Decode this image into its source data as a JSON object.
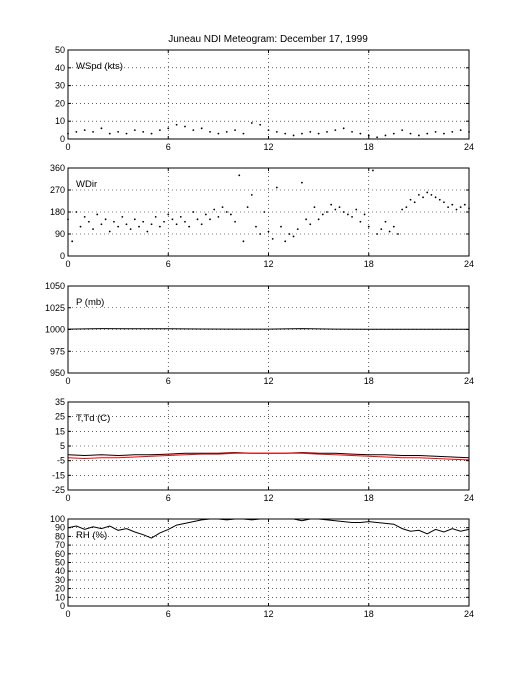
{
  "title": "Juneau NDI Meteogram:   December 17, 1999",
  "chart_data": {
    "type": "line",
    "x_range": [
      0,
      24
    ],
    "x_ticks": [
      0,
      6,
      12,
      18,
      24
    ],
    "grid": true,
    "panels": [
      {
        "id": "wspd",
        "label": "WSpd (kts)",
        "ylim": [
          0,
          50
        ],
        "y_ticks": [
          0,
          10,
          20,
          30,
          40,
          50
        ],
        "series": [
          {
            "style": "dots",
            "color": "#000000",
            "x": [
              0,
              0.5,
              1,
              1.5,
              2,
              2.5,
              3,
              3.5,
              4,
              4.5,
              5,
              5.5,
              6,
              6.5,
              7,
              7.5,
              8,
              8.5,
              9,
              9.5,
              10,
              10.5,
              11,
              11.5,
              12,
              12.5,
              13,
              13.5,
              14,
              14.5,
              15,
              15.5,
              16,
              16.5,
              17,
              17.5,
              18,
              18.5,
              19,
              19.5,
              20,
              20.5,
              21,
              21.5,
              22,
              22.5,
              23,
              23.5,
              24
            ],
            "y": [
              3,
              4,
              5,
              4,
              6,
              3,
              4,
              3,
              5,
              4,
              3,
              5,
              6,
              8,
              7,
              5,
              6,
              4,
              3,
              4,
              5,
              3,
              9,
              8,
              5,
              4,
              3,
              2,
              3,
              4,
              3,
              4,
              5,
              6,
              4,
              3,
              2,
              1,
              2,
              3,
              5,
              3,
              2,
              3,
              4,
              3,
              4,
              5,
              4
            ]
          }
        ]
      },
      {
        "id": "wdir",
        "label": "WDir",
        "ylim": [
          0,
          360
        ],
        "y_ticks": [
          0,
          90,
          180,
          270,
          360
        ],
        "series": [
          {
            "style": "dots",
            "color": "#000000",
            "x": [
              0,
              0.25,
              0.5,
              0.75,
              1,
              1.25,
              1.5,
              1.75,
              2,
              2.25,
              2.5,
              2.75,
              3,
              3.25,
              3.5,
              3.75,
              4,
              4.25,
              4.5,
              4.75,
              5,
              5.25,
              5.5,
              5.75,
              6,
              6.25,
              6.5,
              6.75,
              7,
              7.25,
              7.5,
              7.75,
              8,
              8.25,
              8.5,
              8.75,
              9,
              9.25,
              9.5,
              9.75,
              10,
              10.25,
              10.5,
              10.75,
              11,
              11.25,
              11.5,
              11.75,
              12,
              12.25,
              12.5,
              12.75,
              13,
              13.25,
              13.5,
              13.75,
              14,
              14.25,
              14.5,
              14.75,
              15,
              15.25,
              15.5,
              15.75,
              16,
              16.25,
              16.5,
              16.75,
              17,
              17.25,
              17.5,
              17.75,
              18,
              18.25,
              18.5,
              18.75,
              19,
              19.25,
              19.5,
              19.75,
              20,
              20.25,
              20.5,
              20.75,
              21,
              21.25,
              21.5,
              21.75,
              22,
              22.25,
              22.5,
              22.75,
              23,
              23.25,
              23.5,
              23.75,
              24
            ],
            "y": [
              150,
              60,
              180,
              120,
              160,
              140,
              110,
              170,
              130,
              150,
              100,
              140,
              120,
              160,
              130,
              110,
              150,
              120,
              140,
              100,
              130,
              160,
              120,
              140,
              170,
              150,
              130,
              160,
              140,
              120,
              180,
              150,
              130,
              170,
              150,
              190,
              160,
              200,
              180,
              170,
              140,
              330,
              60,
              200,
              250,
              120,
              90,
              180,
              100,
              70,
              280,
              120,
              60,
              90,
              80,
              110,
              300,
              150,
              130,
              200,
              150,
              170,
              180,
              210,
              190,
              200,
              180,
              170,
              160,
              190,
              140,
              170,
              120,
              350,
              90,
              110,
              140,
              100,
              120,
              90,
              190,
              200,
              230,
              220,
              250,
              240,
              260,
              250,
              240,
              230,
              220,
              200,
              210,
              190,
              200,
              210,
              195
            ]
          }
        ]
      },
      {
        "id": "pres",
        "label": "P (mb)",
        "ylim": [
          950,
          1050
        ],
        "y_ticks": [
          950,
          975,
          1000,
          1025,
          1050
        ],
        "series": [
          {
            "style": "line",
            "color": "#000000",
            "x": [
              0,
              2,
              4,
              6,
              8,
              10,
              12,
              14,
              16,
              18,
              20,
              22,
              24
            ],
            "y": [
              1000.5,
              1001,
              1000.8,
              1000.8,
              1000.6,
              1000.5,
              1000.5,
              1001,
              1000.5,
              1000.3,
              1000.2,
              1000.2,
              1000.3
            ]
          }
        ]
      },
      {
        "id": "temp",
        "label": "T,Td (C)",
        "ylim": [
          -25,
          35
        ],
        "y_ticks": [
          -25,
          -15,
          -5,
          5,
          15,
          25,
          35
        ],
        "series": [
          {
            "style": "line",
            "color": "#000000",
            "x": [
              0,
              1,
              2,
              3,
              4,
              5,
              6,
              7,
              8,
              9,
              10,
              11,
              12,
              13,
              14,
              15,
              16,
              17,
              18,
              19,
              20,
              21,
              22,
              23,
              24
            ],
            "y": [
              -1,
              -1.5,
              -1,
              -1.5,
              -1,
              -1,
              -0.5,
              0,
              0,
              0,
              0.5,
              0,
              0,
              0,
              0.5,
              0,
              0,
              -0.5,
              -1,
              -1,
              -1.5,
              -1.5,
              -2,
              -2.5,
              -3
            ]
          },
          {
            "style": "line",
            "color": "#ff0000",
            "x": [
              0,
              1,
              2,
              3,
              4,
              5,
              6,
              7,
              8,
              9,
              10,
              11,
              12,
              13,
              14,
              15,
              16,
              17,
              18,
              19,
              20,
              21,
              22,
              23,
              24
            ],
            "y": [
              -3,
              -3.5,
              -3,
              -3,
              -2.5,
              -2,
              -1.5,
              -1,
              -0.5,
              -0.5,
              0,
              0,
              0,
              0,
              0,
              -0.5,
              -1,
              -1.5,
              -2,
              -2.5,
              -3,
              -3,
              -3.5,
              -4,
              -4.5
            ]
          }
        ]
      },
      {
        "id": "rh",
        "label": "RH (%)",
        "ylim": [
          0,
          100
        ],
        "y_ticks": [
          0,
          10,
          20,
          30,
          40,
          50,
          60,
          70,
          80,
          90,
          100
        ],
        "series": [
          {
            "style": "line",
            "color": "#000000",
            "x": [
              0,
              0.5,
              1,
              1.5,
              2,
              2.5,
              3,
              3.5,
              4,
              4.5,
              5,
              5.5,
              6,
              6.5,
              7,
              7.5,
              8,
              8.5,
              9,
              9.5,
              10,
              10.5,
              11,
              11.5,
              12,
              12.5,
              13,
              13.5,
              14,
              14.5,
              15,
              15.5,
              16,
              16.5,
              17,
              17.5,
              18,
              18.5,
              19,
              19.5,
              20,
              20.5,
              21,
              21.5,
              22,
              22.5,
              23,
              23.5,
              24
            ],
            "y": [
              90,
              92,
              88,
              91,
              89,
              92,
              87,
              89,
              85,
              82,
              78,
              84,
              88,
              93,
              95,
              97,
              99,
              100,
              100,
              99,
              100,
              100,
              99,
              100,
              100,
              100,
              100,
              100,
              98,
              100,
              100,
              99,
              98,
              97,
              96,
              96,
              97,
              96,
              95,
              94,
              89,
              86,
              87,
              83,
              88,
              85,
              89,
              86,
              88
            ]
          }
        ]
      }
    ]
  }
}
